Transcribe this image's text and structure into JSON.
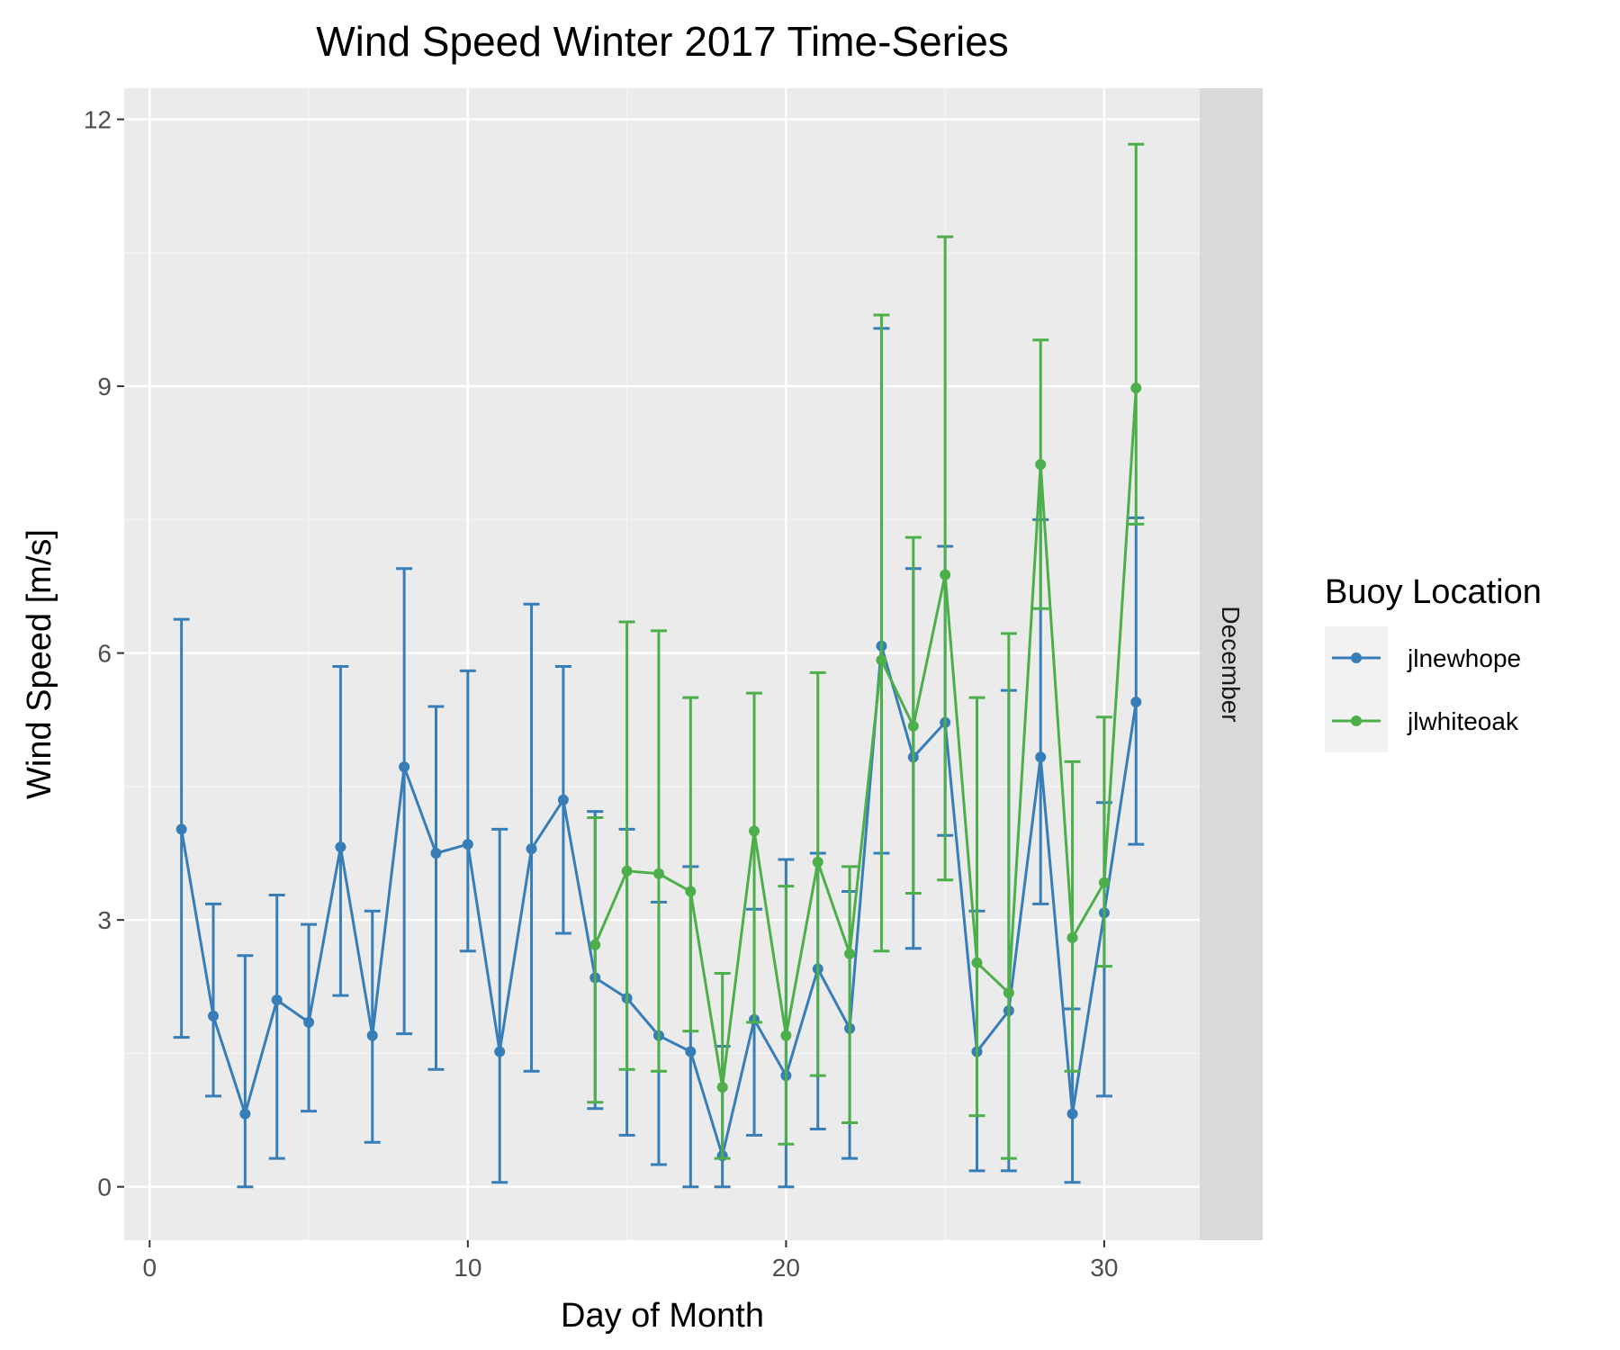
{
  "chart_data": {
    "type": "line",
    "title": "Wind Speed Winter 2017 Time-Series",
    "xlabel": "Day of Month",
    "ylabel": "Wind Speed [m/s]",
    "facet_label": "December",
    "xlim": [
      -0.8,
      33.0
    ],
    "ylim": [
      -0.6,
      12.35
    ],
    "x_ticks": [
      0,
      10,
      20,
      30
    ],
    "y_ticks": [
      0,
      3,
      6,
      9,
      12
    ],
    "grid": true,
    "legend": {
      "title": "Buoy Location",
      "position": "right"
    },
    "series": [
      {
        "name": "jlnewhope",
        "color": "#377EB8",
        "x": [
          1,
          2,
          3,
          4,
          5,
          6,
          7,
          8,
          9,
          10,
          11,
          12,
          13,
          14,
          15,
          16,
          17,
          18,
          19,
          20,
          21,
          22,
          23,
          24,
          25,
          26,
          27,
          28,
          29,
          30,
          31
        ],
        "y": [
          4.02,
          1.92,
          0.82,
          2.1,
          1.85,
          3.82,
          1.7,
          4.72,
          3.75,
          3.85,
          1.52,
          3.8,
          4.35,
          2.35,
          2.12,
          1.7,
          1.52,
          0.35,
          1.88,
          1.25,
          2.45,
          1.78,
          6.08,
          4.83,
          5.22,
          1.52,
          1.98,
          4.83,
          0.82,
          3.08,
          5.45
        ],
        "lower": [
          1.68,
          1.02,
          0.0,
          0.32,
          0.85,
          2.15,
          0.5,
          1.72,
          1.32,
          2.65,
          0.05,
          1.3,
          2.85,
          0.88,
          0.58,
          0.25,
          0.0,
          0.0,
          0.58,
          0.0,
          0.65,
          0.32,
          3.75,
          2.68,
          3.95,
          0.18,
          0.18,
          3.18,
          0.05,
          1.02,
          3.85
        ],
        "upper": [
          6.38,
          3.18,
          2.6,
          3.28,
          2.95,
          5.85,
          3.1,
          6.95,
          5.4,
          5.8,
          4.02,
          6.55,
          5.85,
          4.22,
          4.02,
          3.2,
          3.6,
          1.58,
          3.12,
          3.68,
          3.75,
          3.32,
          9.65,
          6.95,
          7.2,
          3.1,
          5.58,
          7.5,
          2.0,
          4.32,
          7.52
        ]
      },
      {
        "name": "jlwhiteoak",
        "color": "#4DAF4A",
        "x": [
          14,
          15,
          16,
          17,
          18,
          19,
          20,
          21,
          22,
          23,
          24,
          25,
          26,
          27,
          28,
          29,
          30,
          31
        ],
        "y": [
          2.72,
          3.55,
          3.52,
          3.32,
          1.12,
          4.0,
          1.7,
          3.65,
          2.62,
          5.92,
          5.18,
          6.88,
          2.52,
          2.18,
          8.12,
          2.8,
          3.42,
          8.98
        ],
        "lower": [
          0.95,
          1.32,
          1.3,
          1.75,
          0.32,
          1.85,
          0.48,
          1.25,
          0.72,
          2.65,
          3.3,
          3.45,
          0.8,
          0.32,
          6.5,
          1.3,
          2.48,
          7.45
        ],
        "upper": [
          4.15,
          6.35,
          6.25,
          5.5,
          2.4,
          5.55,
          3.38,
          5.78,
          3.6,
          9.8,
          7.3,
          10.68,
          5.5,
          6.22,
          9.52,
          4.78,
          5.28,
          11.72
        ]
      }
    ]
  }
}
